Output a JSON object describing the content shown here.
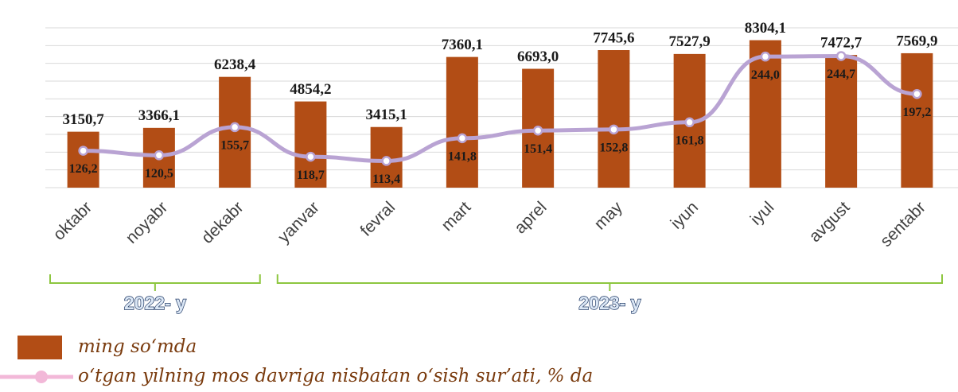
{
  "chart_data": {
    "type": "bar_line",
    "categories": [
      "oktabr",
      "noyabr",
      "dekabr",
      "yanvar",
      "fevral",
      "mart",
      "aprel",
      "may",
      "iyun",
      "iyul",
      "avgust",
      "sentabr"
    ],
    "series": [
      {
        "name": "ming so‘mda",
        "type": "bar",
        "color": "#b24d15",
        "values": [
          3150.7,
          3366.1,
          6238.4,
          4854.2,
          3415.1,
          7360.1,
          6693.0,
          7745.6,
          7527.9,
          8304.1,
          7472.7,
          7569.9
        ],
        "value_labels": [
          "3150,7",
          "3366,1",
          "6238,4",
          "4854,2",
          "3415,1",
          "7360,1",
          "6693,0",
          "7745,6",
          "7527,9",
          "8304,1",
          "7472,7",
          "7569,9"
        ]
      },
      {
        "name": "o‘tgan yilning mos davriga nisbatan o‘sish sur’ati, % da",
        "type": "line",
        "axis": "y2",
        "color": "#b9a3d3",
        "values": [
          126.2,
          120.5,
          155.7,
          118.7,
          113.4,
          141.8,
          151.4,
          152.8,
          161.8,
          244.0,
          244.7,
          197.2
        ],
        "value_labels": [
          "126,2",
          "120,5",
          "155,7",
          "118,7",
          "113,4",
          "141,8",
          "151,4",
          "152,8",
          "161,8",
          "244,0",
          "244,7",
          "197,2"
        ]
      }
    ],
    "groups": [
      {
        "label": "2022- y",
        "size": 3
      },
      {
        "label": "2023- y",
        "size": 9
      }
    ],
    "ylim": [
      0,
      9000
    ],
    "yticks": [
      0,
      1000,
      2000,
      3000,
      4000,
      5000,
      6000,
      7000,
      8000,
      9000
    ],
    "y2lim": [
      80,
      280
    ],
    "grid": true,
    "legend": "bottom-left"
  }
}
